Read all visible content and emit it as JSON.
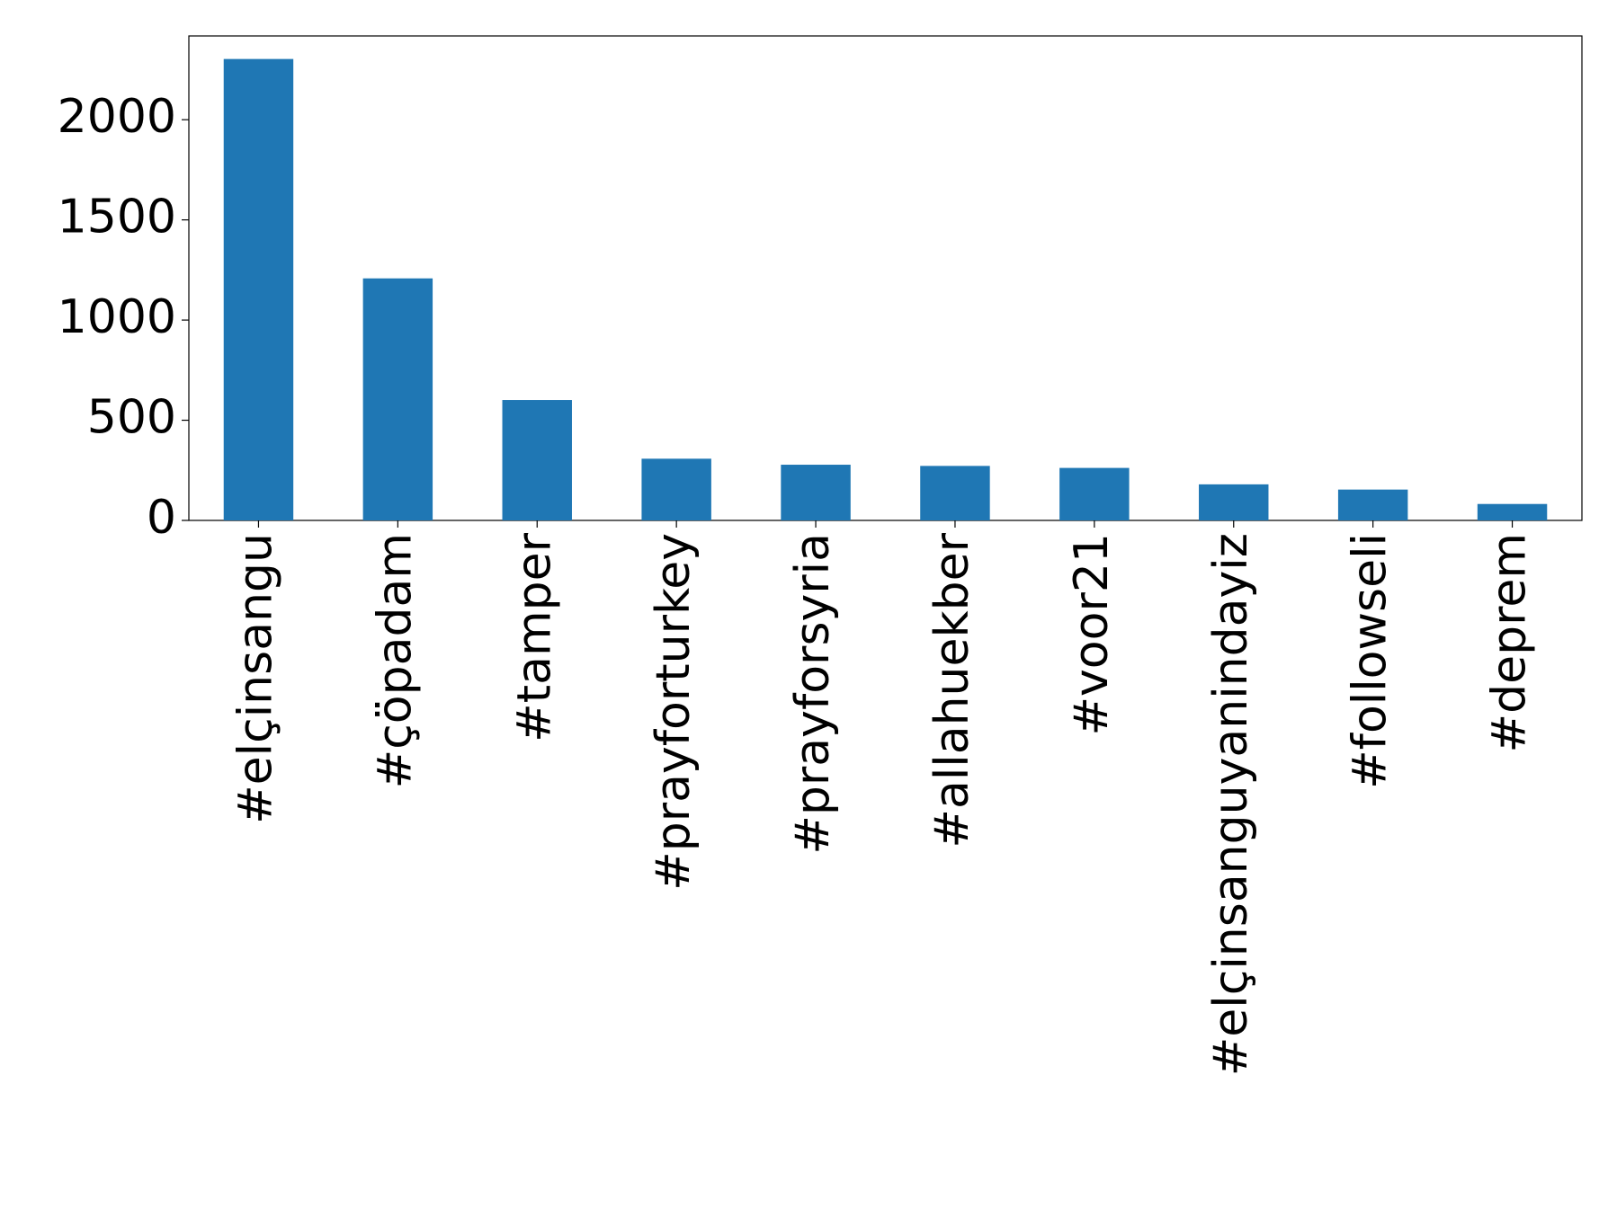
{
  "chart_data": {
    "type": "bar",
    "categories": [
      "#elçinsangu",
      "#çöpadam",
      "#tamper",
      "#prayforturkey",
      "#prayforsyria",
      "#allahuekber",
      "#voor21",
      "#elçinsanguyanindayiz",
      "#followseli",
      "#deprem"
    ],
    "values": [
      2303,
      1208,
      601,
      308,
      278,
      272,
      262,
      180,
      154,
      82
    ],
    "color": "#1f77b4",
    "ylim": [
      0,
      2418
    ],
    "yticks": [
      0,
      500,
      1000,
      1500,
      2000
    ],
    "grid": false
  }
}
